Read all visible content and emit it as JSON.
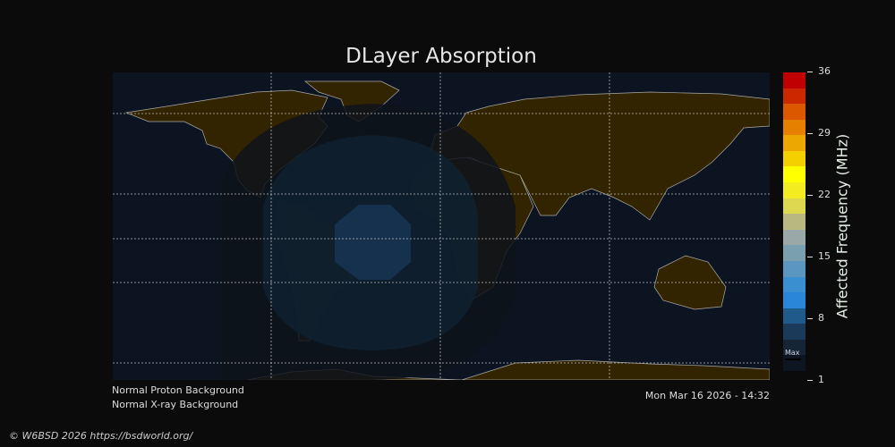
{
  "chart_data": {
    "type": "heatmap",
    "title": "DLayer Absorption",
    "colorbar": {
      "label": "Affected Frequency (MHz)",
      "range": [
        1,
        36
      ],
      "ticks": [
        "36",
        "29",
        "22",
        "15",
        "8",
        "1"
      ],
      "marker_label": "Max",
      "colors": [
        "#0d1520",
        "#152535",
        "#1b3a5a",
        "#205a8a",
        "#2a86d8",
        "#3a8fd0",
        "#5a96c0",
        "#7aa0b0",
        "#9aa8a8",
        "#b8b880",
        "#dcd850",
        "#f2ec20",
        "#ffff00",
        "#f4d000",
        "#eca800",
        "#e68000",
        "#dc5800",
        "#cc2800",
        "#c00000"
      ],
      "map_levels": [
        {
          "level": "background",
          "color": "#0b1420"
        },
        {
          "level": "low",
          "color": "#0e131b"
        },
        {
          "level": "medium",
          "color": "#10202f"
        },
        {
          "level": "high",
          "color": "#173350"
        }
      ]
    },
    "map": {
      "projection": "equirectangular",
      "land_color": "#332400",
      "coast_color": "#aaaaaa",
      "grid": true
    }
  },
  "status": {
    "proton": "Normal Proton Background",
    "xray": "Normal X-ray Background",
    "timestamp": "Mon Mar 16 2026 - 14:32"
  },
  "footer": "© W6BSD 2026 https://bsdworld.org/"
}
